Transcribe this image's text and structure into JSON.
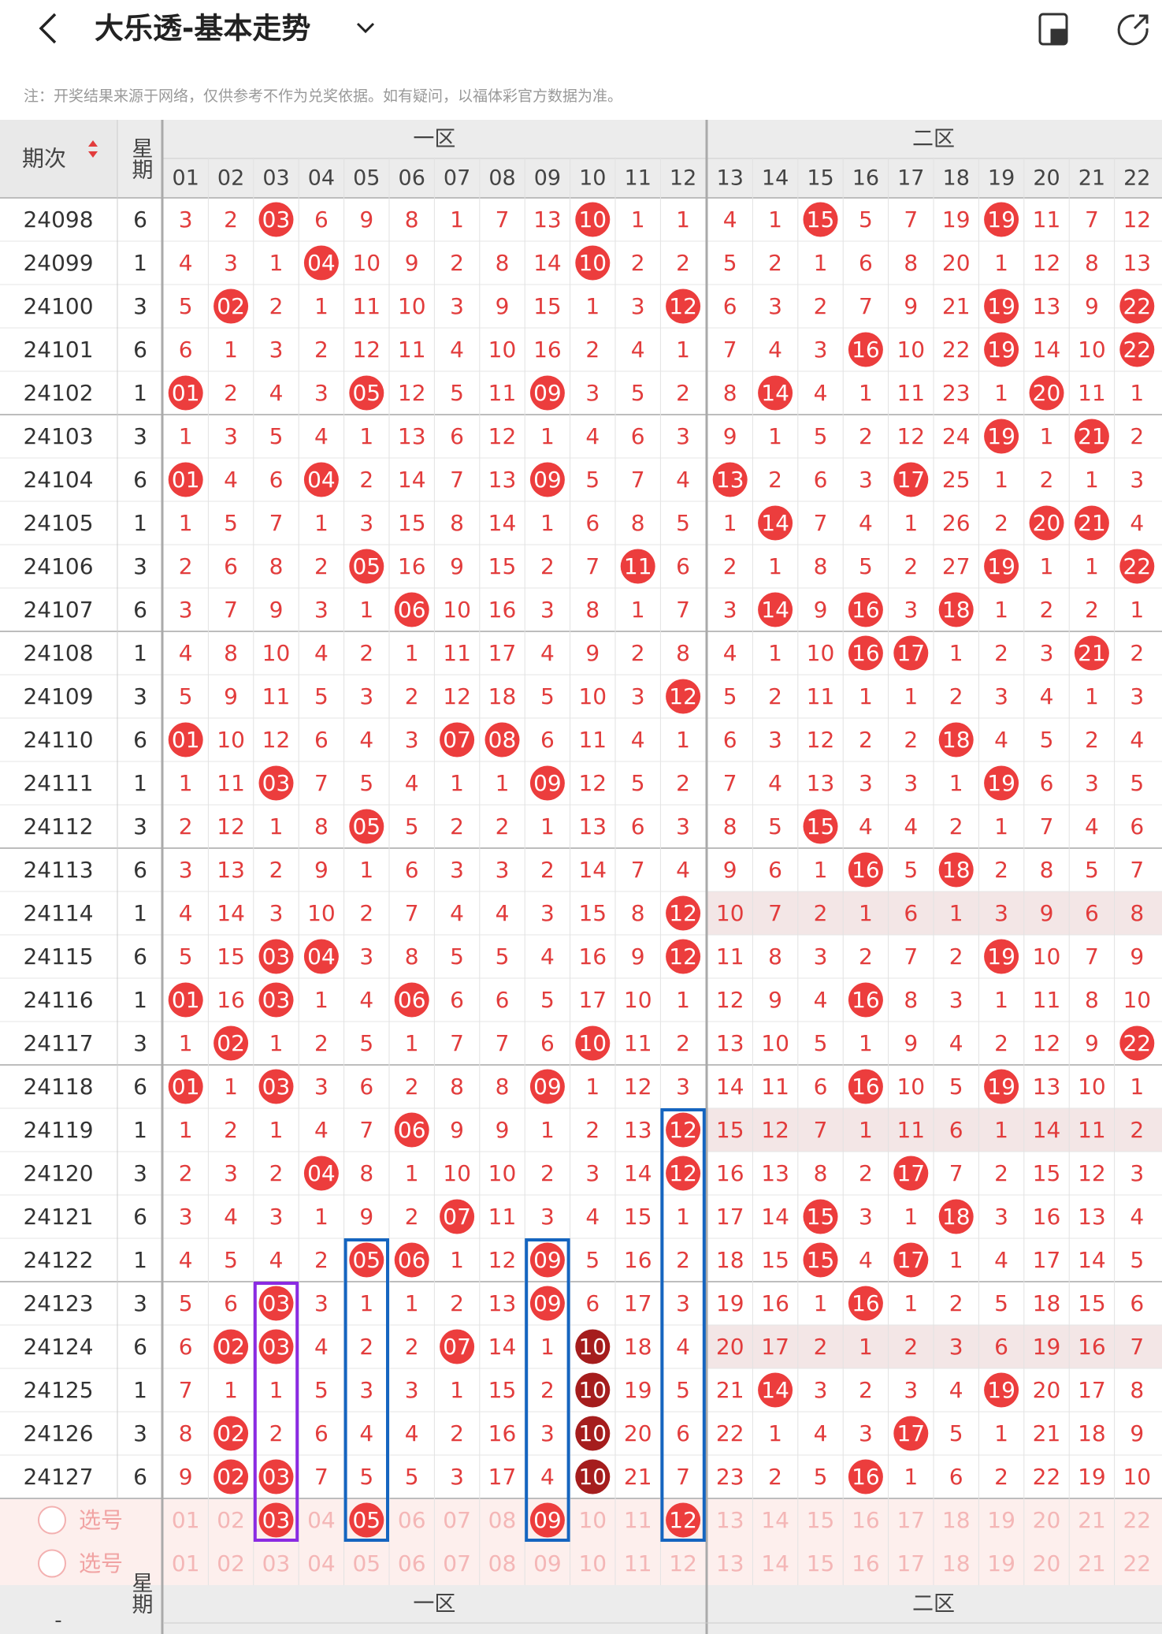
{
  "header": {
    "title": "大乐透-基本走势"
  },
  "note": "注：开奖结果来源于网络，仅供参考不作为兑奖依据。如有疑问，以福体彩官方数据为准。",
  "table": {
    "period_label": "期次",
    "weekday_label": "星期",
    "zones": [
      "一区",
      "二区"
    ],
    "columns": [
      "01",
      "02",
      "03",
      "04",
      "05",
      "06",
      "07",
      "08",
      "09",
      "10",
      "11",
      "12",
      "13",
      "14",
      "15",
      "16",
      "17",
      "18",
      "19",
      "20",
      "21",
      "22"
    ],
    "rows": [
      {
        "period": "24098",
        "weekday": "6",
        "cells": [
          "3",
          "2",
          "03",
          "6",
          "9",
          "8",
          "1",
          "7",
          "13",
          "10",
          "1",
          "1",
          "4",
          "1",
          "15",
          "5",
          "7",
          "19",
          "19",
          "11",
          "7",
          "12"
        ],
        "hits": [
          2,
          9,
          14,
          18
        ]
      },
      {
        "period": "24099",
        "weekday": "1",
        "cells": [
          "4",
          "3",
          "1",
          "04",
          "10",
          "9",
          "2",
          "8",
          "14",
          "10",
          "2",
          "2",
          "5",
          "2",
          "1",
          "6",
          "8",
          "20",
          "1",
          "12",
          "8",
          "13"
        ],
        "hits": [
          3,
          9
        ]
      },
      {
        "period": "24100",
        "weekday": "3",
        "cells": [
          "5",
          "02",
          "2",
          "1",
          "11",
          "10",
          "3",
          "9",
          "15",
          "1",
          "3",
          "12",
          "6",
          "3",
          "2",
          "7",
          "9",
          "21",
          "19",
          "13",
          "9",
          "22"
        ],
        "hits": [
          1,
          11,
          18,
          21
        ]
      },
      {
        "period": "24101",
        "weekday": "6",
        "cells": [
          "6",
          "1",
          "3",
          "2",
          "12",
          "11",
          "4",
          "10",
          "16",
          "2",
          "4",
          "1",
          "7",
          "4",
          "3",
          "16",
          "10",
          "22",
          "19",
          "14",
          "10",
          "22"
        ],
        "hits": [
          15,
          18,
          21
        ]
      },
      {
        "period": "24102",
        "weekday": "1",
        "cells": [
          "01",
          "2",
          "4",
          "3",
          "05",
          "12",
          "5",
          "11",
          "09",
          "3",
          "5",
          "2",
          "8",
          "14",
          "4",
          "1",
          "11",
          "23",
          "1",
          "20",
          "11",
          "1"
        ],
        "hits": [
          0,
          4,
          8,
          13,
          19
        ]
      },
      {
        "period": "24103",
        "weekday": "3",
        "cells": [
          "1",
          "3",
          "5",
          "4",
          "1",
          "13",
          "6",
          "12",
          "1",
          "4",
          "6",
          "3",
          "9",
          "1",
          "5",
          "2",
          "12",
          "24",
          "19",
          "1",
          "21",
          "2"
        ],
        "hits": [
          18,
          20
        ]
      },
      {
        "period": "24104",
        "weekday": "6",
        "cells": [
          "01",
          "4",
          "6",
          "04",
          "2",
          "14",
          "7",
          "13",
          "09",
          "5",
          "7",
          "4",
          "13",
          "2",
          "6",
          "3",
          "17",
          "25",
          "1",
          "2",
          "1",
          "3"
        ],
        "hits": [
          0,
          3,
          8,
          12,
          16
        ]
      },
      {
        "period": "24105",
        "weekday": "1",
        "cells": [
          "1",
          "5",
          "7",
          "1",
          "3",
          "15",
          "8",
          "14",
          "1",
          "6",
          "8",
          "5",
          "1",
          "14",
          "7",
          "4",
          "1",
          "26",
          "2",
          "20",
          "21",
          "4"
        ],
        "hits": [
          13,
          19,
          20
        ]
      },
      {
        "period": "24106",
        "weekday": "3",
        "cells": [
          "2",
          "6",
          "8",
          "2",
          "05",
          "16",
          "9",
          "15",
          "2",
          "7",
          "11",
          "6",
          "2",
          "1",
          "8",
          "5",
          "2",
          "27",
          "19",
          "1",
          "1",
          "22"
        ],
        "hits": [
          4,
          10,
          18,
          21
        ]
      },
      {
        "period": "24107",
        "weekday": "6",
        "cells": [
          "3",
          "7",
          "9",
          "3",
          "1",
          "06",
          "10",
          "16",
          "3",
          "8",
          "1",
          "7",
          "3",
          "14",
          "9",
          "16",
          "3",
          "18",
          "1",
          "2",
          "2",
          "1"
        ],
        "hits": [
          5,
          13,
          15,
          17
        ]
      },
      {
        "period": "24108",
        "weekday": "1",
        "cells": [
          "4",
          "8",
          "10",
          "4",
          "2",
          "1",
          "11",
          "17",
          "4",
          "9",
          "2",
          "8",
          "4",
          "1",
          "10",
          "16",
          "17",
          "1",
          "2",
          "3",
          "21",
          "2"
        ],
        "hits": [
          15,
          16,
          20
        ]
      },
      {
        "period": "24109",
        "weekday": "3",
        "cells": [
          "5",
          "9",
          "11",
          "5",
          "3",
          "2",
          "12",
          "18",
          "5",
          "10",
          "3",
          "12",
          "5",
          "2",
          "11",
          "1",
          "1",
          "2",
          "3",
          "4",
          "1",
          "3"
        ],
        "hits": [
          11
        ]
      },
      {
        "period": "24110",
        "weekday": "6",
        "cells": [
          "01",
          "10",
          "12",
          "6",
          "4",
          "3",
          "07",
          "08",
          "6",
          "11",
          "4",
          "1",
          "6",
          "3",
          "12",
          "2",
          "2",
          "18",
          "4",
          "5",
          "2",
          "4"
        ],
        "hits": [
          0,
          6,
          7,
          17
        ]
      },
      {
        "period": "24111",
        "weekday": "1",
        "cells": [
          "1",
          "11",
          "03",
          "7",
          "5",
          "4",
          "1",
          "1",
          "09",
          "12",
          "5",
          "2",
          "7",
          "4",
          "13",
          "3",
          "3",
          "1",
          "19",
          "6",
          "3",
          "5"
        ],
        "hits": [
          2,
          8,
          18
        ]
      },
      {
        "period": "24112",
        "weekday": "3",
        "cells": [
          "2",
          "12",
          "1",
          "8",
          "05",
          "5",
          "2",
          "2",
          "1",
          "13",
          "6",
          "3",
          "8",
          "5",
          "15",
          "4",
          "4",
          "2",
          "1",
          "7",
          "4",
          "6"
        ],
        "hits": [
          4,
          14
        ]
      },
      {
        "period": "24113",
        "weekday": "6",
        "cells": [
          "3",
          "13",
          "2",
          "9",
          "1",
          "6",
          "3",
          "3",
          "2",
          "14",
          "7",
          "4",
          "9",
          "6",
          "1",
          "16",
          "5",
          "18",
          "2",
          "8",
          "5",
          "7"
        ],
        "hits": [
          15,
          17
        ]
      },
      {
        "period": "24114",
        "weekday": "1",
        "cells": [
          "4",
          "14",
          "3",
          "10",
          "2",
          "7",
          "4",
          "4",
          "3",
          "15",
          "8",
          "12",
          "10",
          "7",
          "2",
          "1",
          "6",
          "1",
          "3",
          "9",
          "6",
          "8"
        ],
        "hits": [
          11
        ]
      },
      {
        "period": "24115",
        "weekday": "6",
        "cells": [
          "5",
          "15",
          "03",
          "04",
          "3",
          "8",
          "5",
          "5",
          "4",
          "16",
          "9",
          "12",
          "11",
          "8",
          "3",
          "2",
          "7",
          "2",
          "19",
          "10",
          "7",
          "9"
        ],
        "hits": [
          2,
          3,
          11,
          18
        ]
      },
      {
        "period": "24116",
        "weekday": "1",
        "cells": [
          "01",
          "16",
          "03",
          "1",
          "4",
          "06",
          "6",
          "6",
          "5",
          "17",
          "10",
          "1",
          "12",
          "9",
          "4",
          "16",
          "8",
          "3",
          "1",
          "11",
          "8",
          "10"
        ],
        "hits": [
          0,
          2,
          5,
          15
        ]
      },
      {
        "period": "24117",
        "weekday": "3",
        "cells": [
          "1",
          "02",
          "1",
          "2",
          "5",
          "1",
          "7",
          "7",
          "6",
          "10",
          "11",
          "2",
          "13",
          "10",
          "5",
          "1",
          "9",
          "4",
          "2",
          "12",
          "9",
          "22"
        ],
        "hits": [
          1,
          9,
          21
        ]
      },
      {
        "period": "24118",
        "weekday": "6",
        "cells": [
          "01",
          "1",
          "03",
          "3",
          "6",
          "2",
          "8",
          "8",
          "09",
          "1",
          "12",
          "3",
          "14",
          "11",
          "6",
          "16",
          "10",
          "5",
          "19",
          "13",
          "10",
          "1"
        ],
        "hits": [
          0,
          2,
          8,
          15,
          18
        ]
      },
      {
        "period": "24119",
        "weekday": "1",
        "cells": [
          "1",
          "2",
          "1",
          "4",
          "7",
          "06",
          "9",
          "9",
          "1",
          "2",
          "13",
          "12",
          "15",
          "12",
          "7",
          "1",
          "11",
          "6",
          "1",
          "14",
          "11",
          "2"
        ],
        "hits": [
          5,
          11
        ]
      },
      {
        "period": "24120",
        "weekday": "3",
        "cells": [
          "2",
          "3",
          "2",
          "04",
          "8",
          "1",
          "10",
          "10",
          "2",
          "3",
          "14",
          "12",
          "16",
          "13",
          "8",
          "2",
          "17",
          "7",
          "2",
          "15",
          "12",
          "3"
        ],
        "hits": [
          3,
          11,
          16
        ]
      },
      {
        "period": "24121",
        "weekday": "6",
        "cells": [
          "3",
          "4",
          "3",
          "1",
          "9",
          "2",
          "07",
          "11",
          "3",
          "4",
          "15",
          "1",
          "17",
          "14",
          "15",
          "3",
          "1",
          "18",
          "3",
          "16",
          "13",
          "4"
        ],
        "hits": [
          6,
          14,
          17
        ]
      },
      {
        "period": "24122",
        "weekday": "1",
        "cells": [
          "4",
          "5",
          "4",
          "2",
          "05",
          "06",
          "1",
          "12",
          "09",
          "5",
          "16",
          "2",
          "18",
          "15",
          "15",
          "4",
          "17",
          "1",
          "4",
          "17",
          "14",
          "5"
        ],
        "hits": [
          4,
          5,
          8,
          14,
          16
        ]
      },
      {
        "period": "24123",
        "weekday": "3",
        "cells": [
          "5",
          "6",
          "03",
          "3",
          "1",
          "1",
          "2",
          "13",
          "09",
          "6",
          "17",
          "3",
          "19",
          "16",
          "1",
          "16",
          "1",
          "2",
          "5",
          "18",
          "15",
          "6"
        ],
        "hits": [
          2,
          8,
          15
        ]
      },
      {
        "period": "24124",
        "weekday": "6",
        "cells": [
          "6",
          "02",
          "03",
          "4",
          "2",
          "2",
          "07",
          "14",
          "1",
          "10",
          "18",
          "4",
          "20",
          "17",
          "2",
          "1",
          "2",
          "3",
          "6",
          "19",
          "16",
          "7"
        ],
        "hits": [
          1,
          2,
          6,
          9
        ]
      },
      {
        "period": "24125",
        "weekday": "1",
        "cells": [
          "7",
          "1",
          "1",
          "5",
          "3",
          "3",
          "1",
          "15",
          "2",
          "10",
          "19",
          "5",
          "21",
          "14",
          "3",
          "2",
          "3",
          "4",
          "19",
          "20",
          "17",
          "8"
        ],
        "hits": [
          9,
          13,
          18
        ]
      },
      {
        "period": "24126",
        "weekday": "3",
        "cells": [
          "8",
          "02",
          "2",
          "6",
          "4",
          "4",
          "2",
          "16",
          "3",
          "10",
          "20",
          "6",
          "22",
          "1",
          "4",
          "3",
          "17",
          "5",
          "1",
          "21",
          "18",
          "9"
        ],
        "hits": [
          1,
          9,
          16
        ]
      },
      {
        "period": "24127",
        "weekday": "6",
        "cells": [
          "9",
          "02",
          "03",
          "7",
          "5",
          "5",
          "3",
          "17",
          "4",
          "10",
          "21",
          "7",
          "23",
          "2",
          "5",
          "16",
          "1",
          "6",
          "2",
          "22",
          "19",
          "10"
        ],
        "hits": [
          1,
          2,
          9,
          15
        ]
      }
    ],
    "selection_rows": [
      {
        "label": "选号",
        "selected": [
          2,
          4,
          8,
          11
        ]
      },
      {
        "label": "选号",
        "selected": []
      }
    ]
  },
  "footer": {
    "period_label": "-"
  }
}
